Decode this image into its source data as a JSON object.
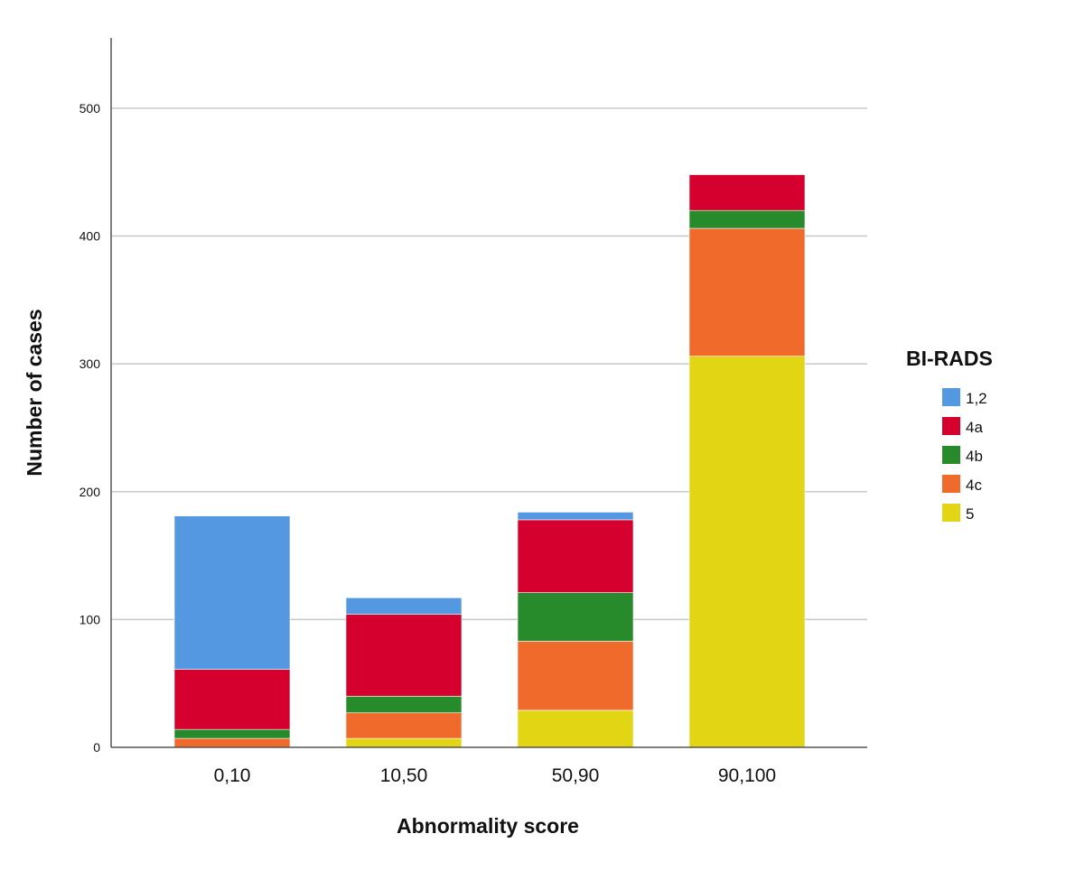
{
  "chart_data": {
    "type": "bar",
    "stacked": true,
    "categories": [
      "0,10",
      "10,50",
      "50,90",
      "90,100"
    ],
    "series": [
      {
        "name": "5",
        "color": "#e2d614",
        "values": [
          0,
          7,
          29,
          306
        ]
      },
      {
        "name": "4c",
        "color": "#ef6a2b",
        "values": [
          7,
          20,
          54,
          100
        ]
      },
      {
        "name": "4b",
        "color": "#278a2b",
        "values": [
          7,
          13,
          38,
          14
        ]
      },
      {
        "name": "4a",
        "color": "#d6002f",
        "values": [
          47,
          64,
          57,
          28
        ]
      },
      {
        "name": "1,2",
        "color": "#5598e2",
        "values": [
          120,
          13,
          6,
          0
        ]
      }
    ],
    "xlabel": "Abnormality score",
    "ylabel": "Number of cases",
    "yticks": [
      0,
      100,
      200,
      300,
      400,
      500
    ],
    "ylim": [
      0,
      555
    ],
    "grid": true,
    "legend": {
      "title": "BI-RADS",
      "position": "right",
      "order": [
        "1,2",
        "4a",
        "4b",
        "4c",
        "5"
      ]
    }
  }
}
